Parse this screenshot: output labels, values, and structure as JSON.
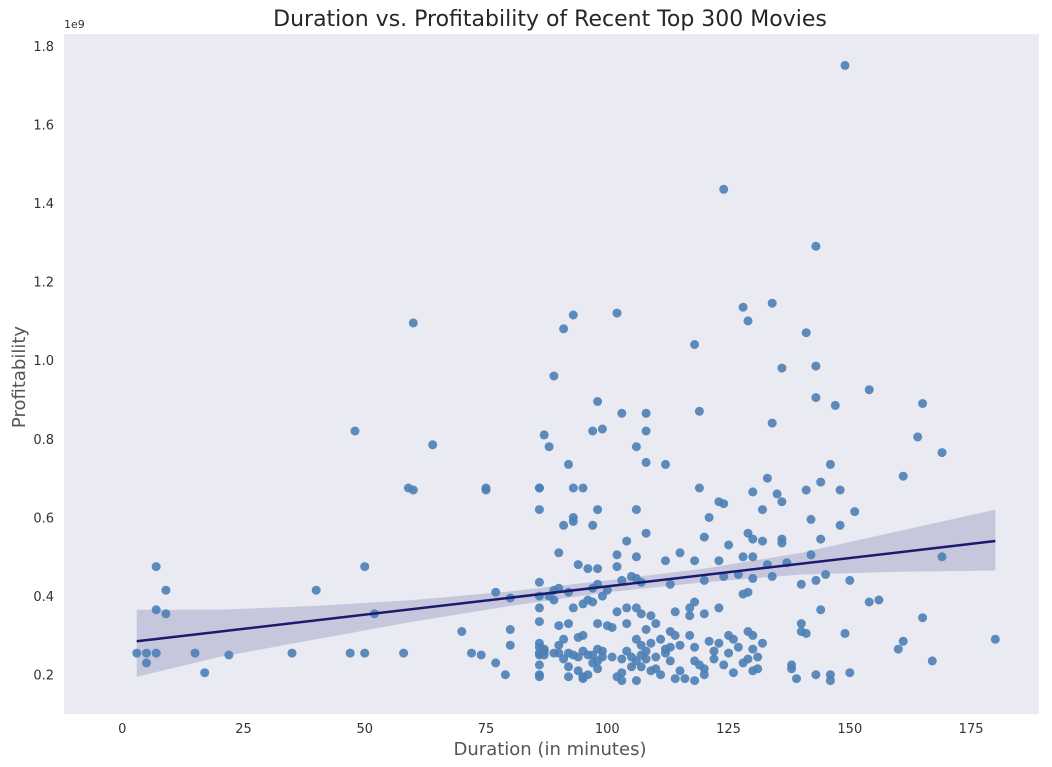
{
  "chart_data": {
    "type": "scatter",
    "title": "Duration vs. Profitability of Recent Top 300 Movies",
    "xlabel": "Duration (in minutes)",
    "ylabel": "Profitability",
    "y_scale_label": "1e9",
    "xlim": [
      -12,
      189
    ],
    "ylim": [
      0.1,
      1.83
    ],
    "x_ticks": [
      0,
      25,
      50,
      75,
      100,
      125,
      150,
      175
    ],
    "y_ticks": [
      0.2,
      0.4,
      0.6,
      0.8,
      1.0,
      1.2,
      1.4,
      1.6,
      1.8
    ],
    "y_tick_labels": [
      "0.2",
      "0.4",
      "0.6",
      "0.8",
      "1.0",
      "1.2",
      "1.4",
      "1.6",
      "1.8"
    ],
    "grid": false,
    "colors": {
      "background": "#eaeaf2",
      "points": "#4c7fb5",
      "line": "#1a1a6e",
      "band": "#b9b9d6"
    },
    "regression": {
      "x": [
        3,
        180
      ],
      "y": [
        0.285,
        0.54
      ]
    },
    "confidence_band": {
      "x": [
        3,
        20,
        40,
        60,
        80,
        100,
        120,
        140,
        160,
        180
      ],
      "lower": [
        0.195,
        0.245,
        0.29,
        0.335,
        0.375,
        0.41,
        0.435,
        0.455,
        0.462,
        0.465
      ],
      "upper": [
        0.365,
        0.365,
        0.375,
        0.39,
        0.412,
        0.44,
        0.47,
        0.51,
        0.565,
        0.62
      ]
    },
    "points": [
      [
        3,
        0.255
      ],
      [
        5,
        0.255
      ],
      [
        5,
        0.23
      ],
      [
        7,
        0.255
      ],
      [
        7,
        0.475
      ],
      [
        7,
        0.365
      ],
      [
        9,
        0.355
      ],
      [
        9,
        0.415
      ],
      [
        15,
        0.255
      ],
      [
        17,
        0.205
      ],
      [
        22,
        0.25
      ],
      [
        35,
        0.255
      ],
      [
        40,
        0.415
      ],
      [
        47,
        0.255
      ],
      [
        48,
        0.82
      ],
      [
        50,
        0.255
      ],
      [
        50,
        0.475
      ],
      [
        52,
        0.355
      ],
      [
        58,
        0.255
      ],
      [
        59,
        0.675
      ],
      [
        60,
        0.67
      ],
      [
        60,
        1.095
      ],
      [
        64,
        0.785
      ],
      [
        70,
        0.31
      ],
      [
        72,
        0.255
      ],
      [
        74,
        0.25
      ],
      [
        75,
        0.67
      ],
      [
        75,
        0.675
      ],
      [
        77,
        0.41
      ],
      [
        77,
        0.23
      ],
      [
        79,
        0.2
      ],
      [
        80,
        0.395
      ],
      [
        80,
        0.315
      ],
      [
        80,
        0.275
      ],
      [
        86,
        0.675
      ],
      [
        86,
        0.675
      ],
      [
        86,
        0.62
      ],
      [
        86,
        0.435
      ],
      [
        86,
        0.4
      ],
      [
        86,
        0.37
      ],
      [
        86,
        0.335
      ],
      [
        86,
        0.28
      ],
      [
        86,
        0.27
      ],
      [
        86,
        0.255
      ],
      [
        86,
        0.25
      ],
      [
        86,
        0.225
      ],
      [
        86,
        0.2
      ],
      [
        86,
        0.195
      ],
      [
        87,
        0.81
      ],
      [
        87,
        0.265
      ],
      [
        87,
        0.26
      ],
      [
        87,
        0.25
      ],
      [
        88,
        0.78
      ],
      [
        88,
        0.4
      ],
      [
        89,
        0.96
      ],
      [
        89,
        0.415
      ],
      [
        89,
        0.39
      ],
      [
        89,
        0.255
      ],
      [
        90,
        0.51
      ],
      [
        90,
        0.42
      ],
      [
        90,
        0.325
      ],
      [
        90,
        0.255
      ],
      [
        90,
        0.275
      ],
      [
        91,
        1.08
      ],
      [
        91,
        0.58
      ],
      [
        91,
        0.29
      ],
      [
        91,
        0.24
      ],
      [
        92,
        0.735
      ],
      [
        92,
        0.41
      ],
      [
        92,
        0.33
      ],
      [
        92,
        0.255
      ],
      [
        92,
        0.22
      ],
      [
        92,
        0.195
      ],
      [
        93,
        1.115
      ],
      [
        93,
        0.675
      ],
      [
        93,
        0.6
      ],
      [
        93,
        0.59
      ],
      [
        93,
        0.37
      ],
      [
        93,
        0.25
      ],
      [
        94,
        0.48
      ],
      [
        94,
        0.295
      ],
      [
        94,
        0.245
      ],
      [
        94,
        0.21
      ],
      [
        95,
        0.675
      ],
      [
        95,
        0.38
      ],
      [
        95,
        0.3
      ],
      [
        95,
        0.26
      ],
      [
        95,
        0.195
      ],
      [
        95,
        0.19
      ],
      [
        96,
        0.47
      ],
      [
        96,
        0.39
      ],
      [
        96,
        0.25
      ],
      [
        96,
        0.2
      ],
      [
        97,
        0.82
      ],
      [
        97,
        0.58
      ],
      [
        97,
        0.42
      ],
      [
        97,
        0.385
      ],
      [
        97,
        0.25
      ],
      [
        97,
        0.23
      ],
      [
        98,
        0.895
      ],
      [
        98,
        0.62
      ],
      [
        98,
        0.47
      ],
      [
        98,
        0.43
      ],
      [
        98,
        0.33
      ],
      [
        98,
        0.265
      ],
      [
        98,
        0.235
      ],
      [
        98,
        0.215
      ],
      [
        99,
        0.825
      ],
      [
        99,
        0.4
      ],
      [
        99,
        0.26
      ],
      [
        99,
        0.245
      ],
      [
        100,
        0.415
      ],
      [
        100,
        0.325
      ],
      [
        101,
        0.32
      ],
      [
        101,
        0.245
      ],
      [
        102,
        1.12
      ],
      [
        102,
        0.505
      ],
      [
        102,
        0.475
      ],
      [
        102,
        0.36
      ],
      [
        102,
        0.195
      ],
      [
        103,
        0.865
      ],
      [
        103,
        0.44
      ],
      [
        103,
        0.24
      ],
      [
        103,
        0.205
      ],
      [
        103,
        0.185
      ],
      [
        104,
        0.54
      ],
      [
        104,
        0.37
      ],
      [
        104,
        0.33
      ],
      [
        104,
        0.26
      ],
      [
        105,
        0.45
      ],
      [
        105,
        0.245
      ],
      [
        105,
        0.22
      ],
      [
        106,
        0.78
      ],
      [
        106,
        0.62
      ],
      [
        106,
        0.5
      ],
      [
        106,
        0.445
      ],
      [
        106,
        0.37
      ],
      [
        106,
        0.29
      ],
      [
        106,
        0.235
      ],
      [
        106,
        0.185
      ],
      [
        107,
        0.435
      ],
      [
        107,
        0.355
      ],
      [
        107,
        0.275
      ],
      [
        107,
        0.25
      ],
      [
        107,
        0.22
      ],
      [
        108,
        0.865
      ],
      [
        108,
        0.82
      ],
      [
        108,
        0.74
      ],
      [
        108,
        0.56
      ],
      [
        108,
        0.315
      ],
      [
        108,
        0.26
      ],
      [
        108,
        0.24
      ],
      [
        109,
        0.35
      ],
      [
        109,
        0.28
      ],
      [
        109,
        0.21
      ],
      [
        110,
        0.33
      ],
      [
        110,
        0.245
      ],
      [
        110,
        0.215
      ],
      [
        111,
        0.29
      ],
      [
        111,
        0.2
      ],
      [
        112,
        0.735
      ],
      [
        112,
        0.49
      ],
      [
        112,
        0.265
      ],
      [
        112,
        0.255
      ],
      [
        113,
        0.43
      ],
      [
        113,
        0.31
      ],
      [
        113,
        0.27
      ],
      [
        113,
        0.235
      ],
      [
        114,
        0.36
      ],
      [
        114,
        0.3
      ],
      [
        114,
        0.19
      ],
      [
        115,
        0.51
      ],
      [
        115,
        0.275
      ],
      [
        115,
        0.21
      ],
      [
        116,
        0.19
      ],
      [
        117,
        0.35
      ],
      [
        117,
        0.37
      ],
      [
        117,
        0.3
      ],
      [
        118,
        1.04
      ],
      [
        118,
        0.49
      ],
      [
        118,
        0.385
      ],
      [
        118,
        0.27
      ],
      [
        118,
        0.235
      ],
      [
        118,
        0.185
      ],
      [
        119,
        0.87
      ],
      [
        119,
        0.675
      ],
      [
        119,
        0.225
      ],
      [
        120,
        0.55
      ],
      [
        120,
        0.44
      ],
      [
        120,
        0.355
      ],
      [
        120,
        0.215
      ],
      [
        120,
        0.2
      ],
      [
        121,
        0.6
      ],
      [
        121,
        0.285
      ],
      [
        122,
        0.26
      ],
      [
        122,
        0.24
      ],
      [
        123,
        0.64
      ],
      [
        123,
        0.49
      ],
      [
        123,
        0.37
      ],
      [
        123,
        0.28
      ],
      [
        124,
        1.435
      ],
      [
        124,
        0.635
      ],
      [
        124,
        0.45
      ],
      [
        124,
        0.225
      ],
      [
        125,
        0.53
      ],
      [
        125,
        0.3
      ],
      [
        125,
        0.255
      ],
      [
        126,
        0.29
      ],
      [
        126,
        0.205
      ],
      [
        127,
        0.455
      ],
      [
        127,
        0.27
      ],
      [
        128,
        1.135
      ],
      [
        128,
        0.5
      ],
      [
        128,
        0.405
      ],
      [
        128,
        0.23
      ],
      [
        129,
        1.1
      ],
      [
        129,
        0.56
      ],
      [
        129,
        0.41
      ],
      [
        129,
        0.31
      ],
      [
        129,
        0.24
      ],
      [
        130,
        0.665
      ],
      [
        130,
        0.545
      ],
      [
        130,
        0.5
      ],
      [
        130,
        0.445
      ],
      [
        130,
        0.3
      ],
      [
        130,
        0.265
      ],
      [
        130,
        0.21
      ],
      [
        131,
        0.245
      ],
      [
        131,
        0.215
      ],
      [
        132,
        0.62
      ],
      [
        132,
        0.54
      ],
      [
        132,
        0.28
      ],
      [
        133,
        0.7
      ],
      [
        133,
        0.48
      ],
      [
        134,
        1.145
      ],
      [
        134,
        0.84
      ],
      [
        134,
        0.45
      ],
      [
        135,
        0.66
      ],
      [
        136,
        0.98
      ],
      [
        136,
        0.64
      ],
      [
        136,
        0.545
      ],
      [
        136,
        0.535
      ],
      [
        137,
        0.485
      ],
      [
        138,
        0.225
      ],
      [
        138,
        0.215
      ],
      [
        139,
        0.19
      ],
      [
        140,
        0.43
      ],
      [
        140,
        0.33
      ],
      [
        140,
        0.31
      ],
      [
        141,
        1.07
      ],
      [
        141,
        0.67
      ],
      [
        141,
        0.305
      ],
      [
        142,
        0.595
      ],
      [
        142,
        0.505
      ],
      [
        143,
        1.29
      ],
      [
        143,
        0.985
      ],
      [
        143,
        0.905
      ],
      [
        143,
        0.44
      ],
      [
        143,
        0.2
      ],
      [
        144,
        0.69
      ],
      [
        144,
        0.545
      ],
      [
        144,
        0.365
      ],
      [
        145,
        0.455
      ],
      [
        146,
        0.735
      ],
      [
        146,
        0.2
      ],
      [
        146,
        0.185
      ],
      [
        147,
        0.885
      ],
      [
        148,
        0.67
      ],
      [
        148,
        0.58
      ],
      [
        149,
        1.75
      ],
      [
        149,
        0.305
      ],
      [
        150,
        0.44
      ],
      [
        150,
        0.205
      ],
      [
        151,
        0.615
      ],
      [
        154,
        0.925
      ],
      [
        154,
        0.385
      ],
      [
        156,
        0.39
      ],
      [
        160,
        0.265
      ],
      [
        161,
        0.705
      ],
      [
        161,
        0.285
      ],
      [
        164,
        0.805
      ],
      [
        165,
        0.89
      ],
      [
        165,
        0.345
      ],
      [
        167,
        0.235
      ],
      [
        169,
        0.765
      ],
      [
        169,
        0.5
      ],
      [
        180,
        0.29
      ]
    ]
  }
}
